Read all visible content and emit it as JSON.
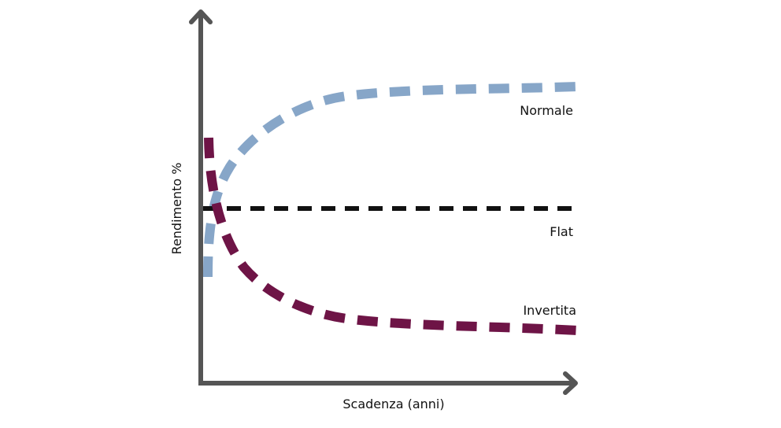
{
  "axes": {
    "y_label": "Rendimento %",
    "x_label": "Scadenza (anni)"
  },
  "curves": [
    {
      "label": "Normale"
    },
    {
      "label": "Flat"
    },
    {
      "label": "Invertita"
    }
  ]
}
